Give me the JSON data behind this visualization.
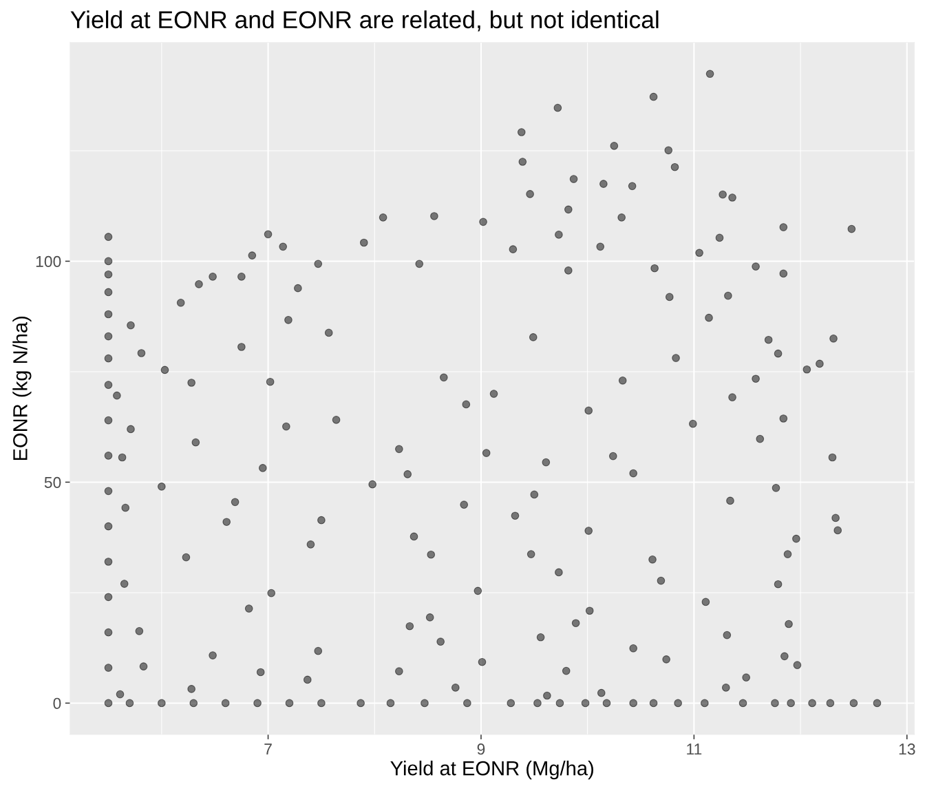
{
  "chart_data": {
    "type": "scatter",
    "title": "Yield at EONR and EONR are related, but not identical",
    "xlabel": "Yield at EONR (Mg/ha)",
    "ylabel": "EONR (kg N/ha)",
    "color": "#000000",
    "marker": "circle",
    "grid": true,
    "xlim": [
      5.14,
      13.07
    ],
    "ylim": [
      -7.1,
      149.5
    ],
    "xticks": [
      7,
      9,
      11,
      13
    ],
    "yticks": [
      0,
      50,
      100
    ],
    "x": [
      5.5,
      5.5,
      5.5,
      5.5,
      5.5,
      5.5,
      5.5,
      5.5,
      5.5,
      5.5,
      5.5,
      5.5,
      5.5,
      5.5,
      5.5,
      5.5,
      5.5,
      5.7,
      6.0,
      6.3,
      6.6,
      6.9,
      7.2,
      7.5,
      7.87,
      8.15,
      8.47,
      8.87,
      9.28,
      9.53,
      9.74,
      9.98,
      10.18,
      10.43,
      10.62,
      10.85,
      11.1,
      11.46,
      11.76,
      11.91,
      12.11,
      12.28,
      12.5,
      12.72,
      11.15,
      10.62,
      9.72,
      9.38,
      10.25,
      10.76,
      9.39,
      10.82,
      9.87,
      10.15,
      10.42,
      9.46,
      11.27,
      11.36,
      9.82,
      8.08,
      8.56,
      10.32,
      9.02,
      11.84,
      12.48,
      7.0,
      9.73,
      11.24,
      7.9,
      7.14,
      9.3,
      6.85,
      10.12,
      11.05,
      7.47,
      8.42,
      9.82,
      11.58,
      11.84,
      6.48,
      6.75,
      10.63,
      6.35,
      7.28,
      11.32,
      6.18,
      10.77,
      5.71,
      7.19,
      11.14,
      7.57,
      9.49,
      11.7,
      12.31,
      5.81,
      6.75,
      11.79,
      10.83,
      12.06,
      12.18,
      6.03,
      6.28,
      7.02,
      8.65,
      10.33,
      11.58,
      5.58,
      9.12,
      11.36,
      8.86,
      10.01,
      11.84,
      7.64,
      5.71,
      10.99,
      7.17,
      6.32,
      11.62,
      8.23,
      9.05,
      12.3,
      5.63,
      10.24,
      6.95,
      9.61,
      8.31,
      10.43,
      6.0,
      11.77,
      7.98,
      9.5,
      6.69,
      8.84,
      11.34,
      5.66,
      12.33,
      6.61,
      9.32,
      7.5,
      12.35,
      10.01,
      8.37,
      11.96,
      6.23,
      9.47,
      11.88,
      7.4,
      10.61,
      8.53,
      5.65,
      7.03,
      8.97,
      9.73,
      11.79,
      10.69,
      6.82,
      8.52,
      10.02,
      11.11,
      5.79,
      8.33,
      9.89,
      11.89,
      7.47,
      6.48,
      8.62,
      9.56,
      10.43,
      11.31,
      11.85,
      11.97,
      5.83,
      6.93,
      9.01,
      10.74,
      8.23,
      9.8,
      11.49,
      6.28,
      7.37,
      8.76,
      10.13,
      11.3,
      5.61,
      9.62
    ],
    "values": [
      0,
      8,
      16,
      24,
      32,
      40,
      48,
      56,
      64,
      72,
      78,
      83,
      88,
      93,
      97,
      100,
      105.5,
      0,
      0,
      0,
      0,
      0,
      0,
      0,
      0,
      0,
      0,
      0,
      0,
      0,
      0,
      0,
      0,
      0,
      0,
      0,
      0,
      0,
      0,
      0,
      0,
      0,
      0,
      0,
      142.4,
      137.2,
      134.7,
      129.2,
      126.1,
      125.1,
      122.5,
      121.3,
      118.6,
      117.5,
      117.0,
      115.2,
      115.1,
      114.4,
      111.7,
      109.9,
      110.2,
      109.9,
      108.9,
      107.7,
      107.3,
      106.1,
      106.0,
      105.3,
      104.2,
      103.3,
      102.7,
      101.3,
      103.3,
      101.9,
      99.4,
      99.4,
      97.9,
      98.8,
      97.2,
      96.5,
      96.5,
      98.4,
      94.8,
      93.9,
      92.2,
      90.6,
      91.9,
      85.5,
      86.7,
      87.2,
      83.8,
      82.8,
      82.2,
      82.5,
      79.2,
      80.6,
      79.1,
      78.1,
      75.5,
      76.8,
      75.4,
      72.5,
      72.7,
      73.7,
      73.0,
      73.4,
      69.6,
      70.0,
      69.2,
      67.6,
      66.2,
      64.4,
      64.1,
      62.0,
      63.2,
      62.6,
      59.0,
      59.8,
      57.5,
      56.6,
      55.6,
      55.6,
      55.9,
      53.2,
      54.5,
      51.8,
      52.0,
      49.0,
      48.7,
      49.5,
      47.2,
      45.5,
      44.9,
      45.8,
      44.2,
      41.9,
      41.0,
      42.4,
      41.4,
      39.1,
      39.0,
      37.7,
      37.2,
      33.0,
      33.7,
      33.7,
      35.9,
      32.5,
      33.6,
      27.0,
      24.9,
      25.4,
      29.6,
      26.9,
      27.7,
      21.4,
      19.4,
      20.9,
      22.9,
      16.3,
      17.4,
      18.1,
      17.9,
      11.8,
      10.8,
      13.9,
      14.9,
      12.4,
      15.4,
      10.6,
      8.6,
      8.3,
      7.0,
      9.3,
      9.9,
      7.2,
      7.3,
      5.8,
      3.2,
      5.3,
      3.5,
      2.3,
      3.5,
      2.0,
      1.7
    ]
  }
}
